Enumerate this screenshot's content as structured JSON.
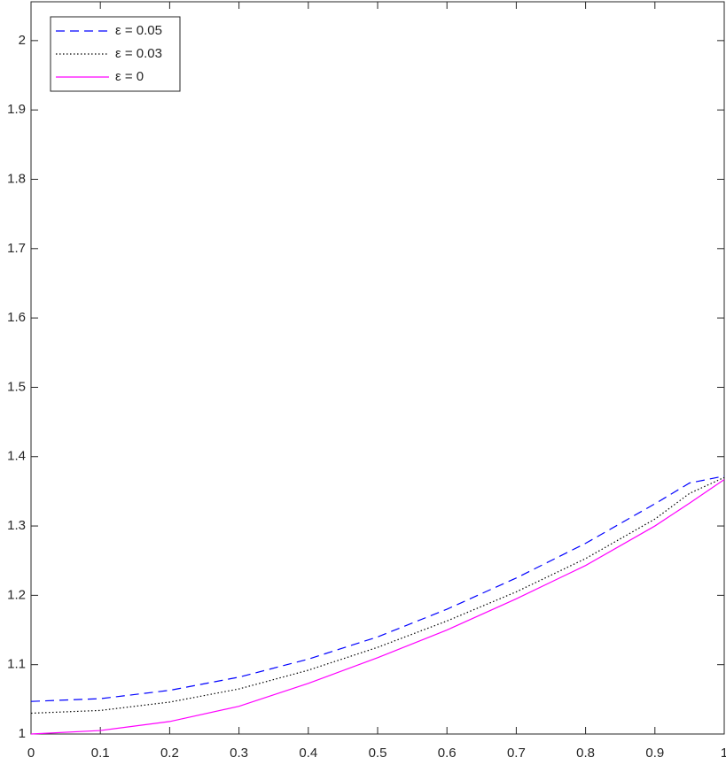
{
  "chart_data": {
    "type": "line",
    "x": [
      0,
      0.1,
      0.2,
      0.3,
      0.4,
      0.5,
      0.6,
      0.7,
      0.8,
      0.9,
      0.95,
      1
    ],
    "series": [
      {
        "name": "ε = 0.05",
        "color": "#0000ff",
        "dash": "dashed",
        "values": [
          1.047,
          1.051,
          1.063,
          1.082,
          1.108,
          1.14,
          1.18,
          1.225,
          1.275,
          1.332,
          1.362,
          1.372
        ]
      },
      {
        "name": "ε = 0.03",
        "color": "#000000",
        "dash": "dotted",
        "values": [
          1.03,
          1.034,
          1.046,
          1.065,
          1.092,
          1.125,
          1.163,
          1.205,
          1.253,
          1.31,
          1.347,
          1.37
        ]
      },
      {
        "name": "ε = 0",
        "color": "#ff00ff",
        "dash": "solid",
        "values": [
          1.0,
          1.005,
          1.018,
          1.04,
          1.073,
          1.11,
          1.15,
          1.195,
          1.243,
          1.3,
          1.333,
          1.367
        ]
      }
    ],
    "xlim": [
      0,
      1
    ],
    "xticks": [
      0,
      0.1,
      0.2,
      0.3,
      0.4,
      0.5,
      0.6,
      0.7,
      0.8,
      0.9,
      1
    ],
    "ylim": [
      1,
      2.056
    ],
    "yticks": [
      1,
      1.1,
      1.2,
      1.3,
      1.4,
      1.5,
      1.6,
      1.7,
      1.8,
      1.9,
      2
    ],
    "grid": false,
    "legend": "upper-left"
  }
}
